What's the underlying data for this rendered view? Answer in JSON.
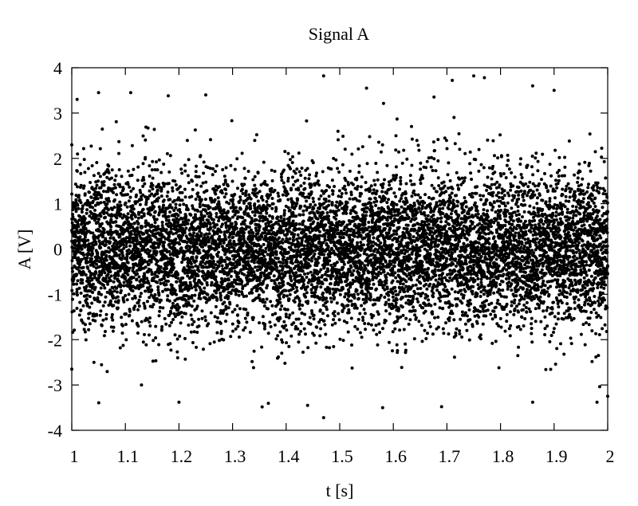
{
  "chart_data": {
    "type": "scatter",
    "title": "Signal A",
    "xlabel": "t [s]",
    "ylabel": "A [V]",
    "xlim": [
      1,
      2
    ],
    "ylim": [
      -4,
      4
    ],
    "xticks": [
      "1",
      "1.1",
      "1.2",
      "1.3",
      "1.4",
      "1.5",
      "1.6",
      "1.7",
      "1.8",
      "1.9",
      "2"
    ],
    "yticks": [
      "4",
      "3",
      "2",
      "1",
      "0",
      "-1",
      "-2",
      "-3",
      "-4"
    ],
    "grid": false,
    "legend": "none",
    "marker_color": "#000000",
    "series": [
      {
        "distribution": "gaussian noise, mean 0 V, std ~0.85 V",
        "t_range": [
          1,
          2
        ],
        "points_sample": [
          [
            1.0,
            2.3
          ],
          [
            1.01,
            3.3
          ],
          [
            1.05,
            3.45
          ],
          [
            1.11,
            3.45
          ],
          [
            1.18,
            3.38
          ],
          [
            1.25,
            3.4
          ],
          [
            1.47,
            3.82
          ],
          [
            1.55,
            3.55
          ],
          [
            1.71,
            3.72
          ],
          [
            1.75,
            3.82
          ],
          [
            1.77,
            3.78
          ],
          [
            1.86,
            3.6
          ],
          [
            1.9,
            3.5
          ],
          [
            1.47,
            -3.72
          ],
          [
            1.44,
            -3.45
          ],
          [
            1.58,
            -3.5
          ],
          [
            1.69,
            -3.48
          ],
          [
            1.2,
            -3.38
          ],
          [
            1.98,
            -3.38
          ],
          [
            2.0,
            -3.25
          ],
          [
            1.13,
            -3.0
          ],
          [
            1.0,
            -2.65
          ],
          [
            1.86,
            -3.38
          ]
        ]
      }
    ]
  }
}
